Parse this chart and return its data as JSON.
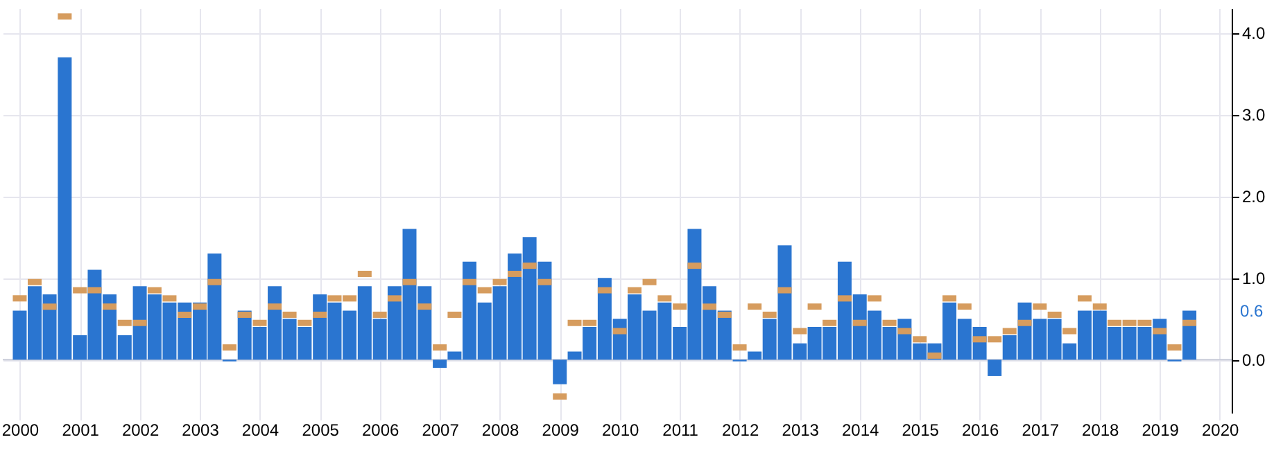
{
  "chart_data": {
    "type": "bar",
    "x": [
      "2000-01",
      "2000-04",
      "2000-07",
      "2000-10",
      "2001-01",
      "2001-04",
      "2001-07",
      "2001-10",
      "2002-01",
      "2002-04",
      "2002-07",
      "2002-10",
      "2003-01",
      "2003-04",
      "2003-07",
      "2003-10",
      "2004-01",
      "2004-04",
      "2004-07",
      "2004-10",
      "2005-01",
      "2005-04",
      "2005-07",
      "2005-10",
      "2006-01",
      "2006-04",
      "2006-07",
      "2006-10",
      "2007-01",
      "2007-04",
      "2007-07",
      "2007-10",
      "2008-01",
      "2008-04",
      "2008-07",
      "2008-10",
      "2009-01",
      "2009-04",
      "2009-07",
      "2009-10",
      "2010-01",
      "2010-04",
      "2010-07",
      "2010-10",
      "2011-01",
      "2011-04",
      "2011-07",
      "2011-10",
      "2012-01",
      "2012-04",
      "2012-07",
      "2012-10",
      "2013-01",
      "2013-04",
      "2013-07",
      "2013-10",
      "2014-01",
      "2014-04",
      "2014-07",
      "2014-10",
      "2015-01",
      "2015-04",
      "2015-07",
      "2015-10",
      "2016-01",
      "2016-04",
      "2016-07",
      "2016-10",
      "2017-01",
      "2017-04",
      "2017-07",
      "2017-10",
      "2018-01",
      "2018-04",
      "2018-07",
      "2018-10",
      "2019-01",
      "2019-04",
      "2019-07"
    ],
    "series": [
      {
        "color": "#2a75d0",
        "values": [
          0.6,
          0.9,
          0.8,
          3.7,
          0.3,
          1.1,
          0.8,
          0.3,
          0.9,
          0.8,
          0.7,
          0.7,
          0.7,
          1.3,
          -0.02,
          0.6,
          0.4,
          0.9,
          0.5,
          0.4,
          0.8,
          0.7,
          0.6,
          0.9,
          0.5,
          0.9,
          1.6,
          0.9,
          -0.1,
          0.1,
          1.2,
          0.7,
          0.9,
          1.3,
          1.5,
          1.2,
          -0.3,
          0.1,
          0.4,
          1.0,
          0.5,
          0.8,
          0.6,
          0.7,
          0.4,
          1.6,
          0.9,
          0.6,
          -0.02,
          0.1,
          0.5,
          1.4,
          0.2,
          0.4,
          0.4,
          1.2,
          0.8,
          0.6,
          0.4,
          0.5,
          0.2,
          0.2,
          0.7,
          0.5,
          0.4,
          -0.2,
          0.3,
          0.7,
          0.5,
          0.5,
          0.2,
          0.6,
          0.6,
          0.4,
          0.4,
          0.4,
          0.5,
          -0.02,
          0.6
        ]
      },
      {
        "type": "scatter",
        "color": "#d69c5e",
        "values": [
          0.75,
          0.95,
          0.65,
          4.2,
          0.85,
          0.85,
          0.65,
          0.45,
          0.45,
          0.85,
          0.75,
          0.55,
          0.65,
          0.95,
          0.15,
          0.55,
          0.45,
          0.65,
          0.55,
          0.45,
          0.55,
          0.75,
          0.75,
          1.05,
          0.55,
          0.75,
          0.95,
          0.65,
          0.15,
          0.55,
          0.95,
          0.85,
          0.95,
          1.05,
          1.15,
          0.95,
          -0.45,
          0.45,
          0.45,
          0.85,
          0.35,
          0.85,
          0.95,
          0.75,
          0.65,
          1.15,
          0.65,
          0.55,
          0.15,
          0.65,
          0.55,
          0.85,
          0.35,
          0.65,
          0.45,
          0.75,
          0.45,
          0.75,
          0.45,
          0.35,
          0.25,
          0.05,
          0.75,
          0.65,
          0.25,
          0.25,
          0.35,
          0.45,
          0.65,
          0.55,
          0.35,
          0.75,
          0.65,
          0.45,
          0.45,
          0.45,
          0.35,
          0.15,
          0.45
        ]
      }
    ],
    "xlim": [
      "1999-11",
      "2020-02"
    ],
    "xticks": [
      "2000",
      "2001",
      "2002",
      "2003",
      "2004",
      "2005",
      "2006",
      "2007",
      "2008",
      "2009",
      "2010",
      "2011",
      "2012",
      "2013",
      "2014",
      "2015",
      "2016",
      "2017",
      "2018",
      "2019",
      "2020"
    ],
    "ylim": [
      -0.65,
      4.3
    ],
    "yticks": [
      {
        "value": 0,
        "label": "0.0"
      },
      {
        "value": 1,
        "label": "1.0"
      },
      {
        "value": 2,
        "label": "2.0"
      },
      {
        "value": 3,
        "label": "3.0"
      },
      {
        "value": 4,
        "label": "4.0"
      }
    ],
    "annotations": [
      "0.6"
    ],
    "grid": true
  }
}
